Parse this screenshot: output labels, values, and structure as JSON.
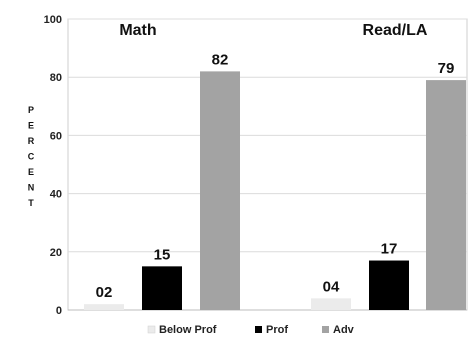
{
  "chart_data": {
    "type": "bar",
    "categories": [
      "Math",
      "Read/LA"
    ],
    "series": [
      {
        "name": "Below Prof",
        "values": [
          2,
          4
        ],
        "labels": [
          "02",
          "04"
        ],
        "color": "#ebebeb"
      },
      {
        "name": "Prof",
        "values": [
          15,
          17
        ],
        "labels": [
          "15",
          "17"
        ],
        "color": "#000000"
      },
      {
        "name": "Adv",
        "values": [
          82,
          79
        ],
        "labels": [
          "82",
          "79"
        ],
        "color": "#a3a3a3"
      }
    ],
    "ylabel": "PERCENT",
    "ylim": [
      0,
      100
    ],
    "yticks": [
      "0",
      "20",
      "40",
      "60",
      "80",
      "100"
    ],
    "grid": true,
    "legend": "bottom"
  }
}
